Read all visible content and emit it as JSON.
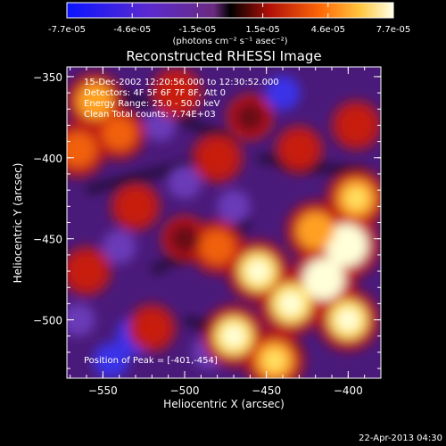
{
  "window": {
    "date_stamp": "22-Apr-2013 04:30"
  },
  "colorbar": {
    "tick_labels": [
      "-7.7e-05",
      "-4.6e-05",
      "-1.5e-05",
      "1.5e-05",
      "4.6e-05",
      "7.7e-05"
    ],
    "unit_label": "(photons cm⁻² s⁻¹ asec⁻²)",
    "range": [
      -7.7e-05,
      7.7e-05
    ],
    "colors": [
      "#0a14ff",
      "#5b2ad0",
      "#8a2a9a",
      "#1a0000",
      "#d01810",
      "#ff7a10",
      "#ffd050",
      "#ffffe0"
    ]
  },
  "chart_data": {
    "type": "heatmap",
    "title": "Reconstructed RHESSI Image",
    "xlabel": "Heliocentric X (arcsec)",
    "ylabel": "Heliocentric Y (arcsec)",
    "xlim": [
      -572,
      -380
    ],
    "ylim": [
      -536,
      -344
    ],
    "x_ticks": [
      -550,
      -500,
      -450,
      -400
    ],
    "y_ticks": [
      -350,
      -400,
      -450,
      -500
    ],
    "x_tick_labels": [
      "−550",
      "−500",
      "−450",
      "−400"
    ],
    "y_tick_labels": [
      "−350",
      "−400",
      "−450",
      "−500"
    ],
    "annotations": [
      "15-Dec-2002 12:20:56.000 to 12:30:52.000",
      "Detectors: 4F 5F 6F 7F 8F, Att 0",
      "Energy Range: 25.0 - 50.0 keV",
      "Clean     Total counts: 7.74E+03"
    ],
    "peak_label": "Position of Peak = [-401,-454]",
    "peak_position": [
      -401,
      -454
    ],
    "bright_regions": [
      {
        "x": -401,
        "y": -454,
        "level": 1.0
      },
      {
        "x": -415,
        "y": -475,
        "level": 0.95
      },
      {
        "x": -435,
        "y": -490,
        "level": 0.9
      },
      {
        "x": -455,
        "y": -470,
        "level": 0.85
      },
      {
        "x": -470,
        "y": -510,
        "level": 0.85
      },
      {
        "x": -445,
        "y": -525,
        "level": 0.8
      },
      {
        "x": -400,
        "y": -500,
        "level": 0.85
      },
      {
        "x": -395,
        "y": -425,
        "level": 0.8
      },
      {
        "x": -420,
        "y": -445,
        "level": 0.75
      },
      {
        "x": -480,
        "y": -455,
        "level": 0.6
      },
      {
        "x": -555,
        "y": -365,
        "level": 0.7
      },
      {
        "x": -565,
        "y": -395,
        "level": 0.65
      },
      {
        "x": -540,
        "y": -385,
        "level": 0.55
      },
      {
        "x": -530,
        "y": -430,
        "level": 0.45
      },
      {
        "x": -505,
        "y": -360,
        "level": 0.5
      },
      {
        "x": -480,
        "y": -400,
        "level": 0.5
      },
      {
        "x": -460,
        "y": -375,
        "level": 0.35
      },
      {
        "x": -430,
        "y": -395,
        "level": 0.4
      },
      {
        "x": -395,
        "y": -380,
        "level": 0.45
      },
      {
        "x": -560,
        "y": -470,
        "level": 0.45
      },
      {
        "x": -520,
        "y": -505,
        "level": 0.4
      },
      {
        "x": -500,
        "y": -450,
        "level": 0.35
      }
    ],
    "dim_regions": [
      {
        "x": -530,
        "y": -510,
        "level": -0.8
      },
      {
        "x": -545,
        "y": -525,
        "level": -0.6
      },
      {
        "x": -500,
        "y": -415,
        "level": -0.5
      },
      {
        "x": -540,
        "y": -455,
        "level": -0.5
      },
      {
        "x": -440,
        "y": -360,
        "level": -0.55
      },
      {
        "x": -470,
        "y": -430,
        "level": -0.45
      },
      {
        "x": -515,
        "y": -380,
        "level": -0.4
      },
      {
        "x": -565,
        "y": -500,
        "level": -0.45
      },
      {
        "x": -485,
        "y": -520,
        "level": -0.5
      }
    ]
  }
}
